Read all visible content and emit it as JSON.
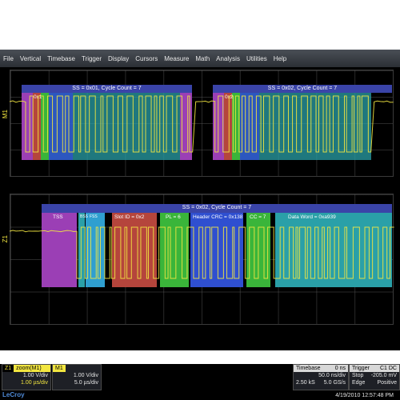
{
  "menu": [
    "File",
    "Vertical",
    "Timebase",
    "Trigger",
    "Display",
    "Cursors",
    "Measure",
    "Math",
    "Analysis",
    "Utilities",
    "Help"
  ],
  "top_panel": {
    "channel_label": "M1",
    "left_header": "SS = 0x01, Cycle Count = 7",
    "right_header": "SS = 0x02, Cycle Count = 7",
    "left_small": "0x1",
    "right_small": "0x2"
  },
  "bottom_panel": {
    "channel_label": "Z1",
    "header": "SS = 0x02, Cycle Count = 7",
    "segments": [
      "TSS",
      "BSS",
      "FSS",
      "Slot ID = 0x2",
      "PL = 6",
      "Header CRC = 0x138",
      "CC = 7",
      "Data Word = 0xa939"
    ]
  },
  "zoom_box": {
    "title": "zoom(M1)",
    "vdiv": "1.00 V/div",
    "tdiv": "1.00 µs/div",
    "tag": "Z1"
  },
  "m1_box": {
    "tag": "M1",
    "vdiv": "1.00 V/div",
    "tdiv": "5.0 µs/div"
  },
  "timebase_box": {
    "label": "Timebase",
    "delay": "0 ns",
    "tdiv": "50.0 ns/div",
    "samples": "2.50 kS",
    "rate": "5.0 GS/s"
  },
  "trigger_box": {
    "label": "Trigger",
    "tag": "C1 DC",
    "mode": "Stop",
    "level": "-205.0 mV",
    "type": "Edge",
    "slope": "Positive"
  },
  "datetime": "4/19/2010 12:57:48 PM",
  "brand": "LeCroy",
  "colors": {
    "trace": "#f2e640",
    "tss": "#9b3fb5",
    "blue": "#2f4fd0",
    "teal": "#2aa0a8",
    "green": "#3ab53a",
    "red": "#b5453c",
    "header": "#3a44a8"
  }
}
